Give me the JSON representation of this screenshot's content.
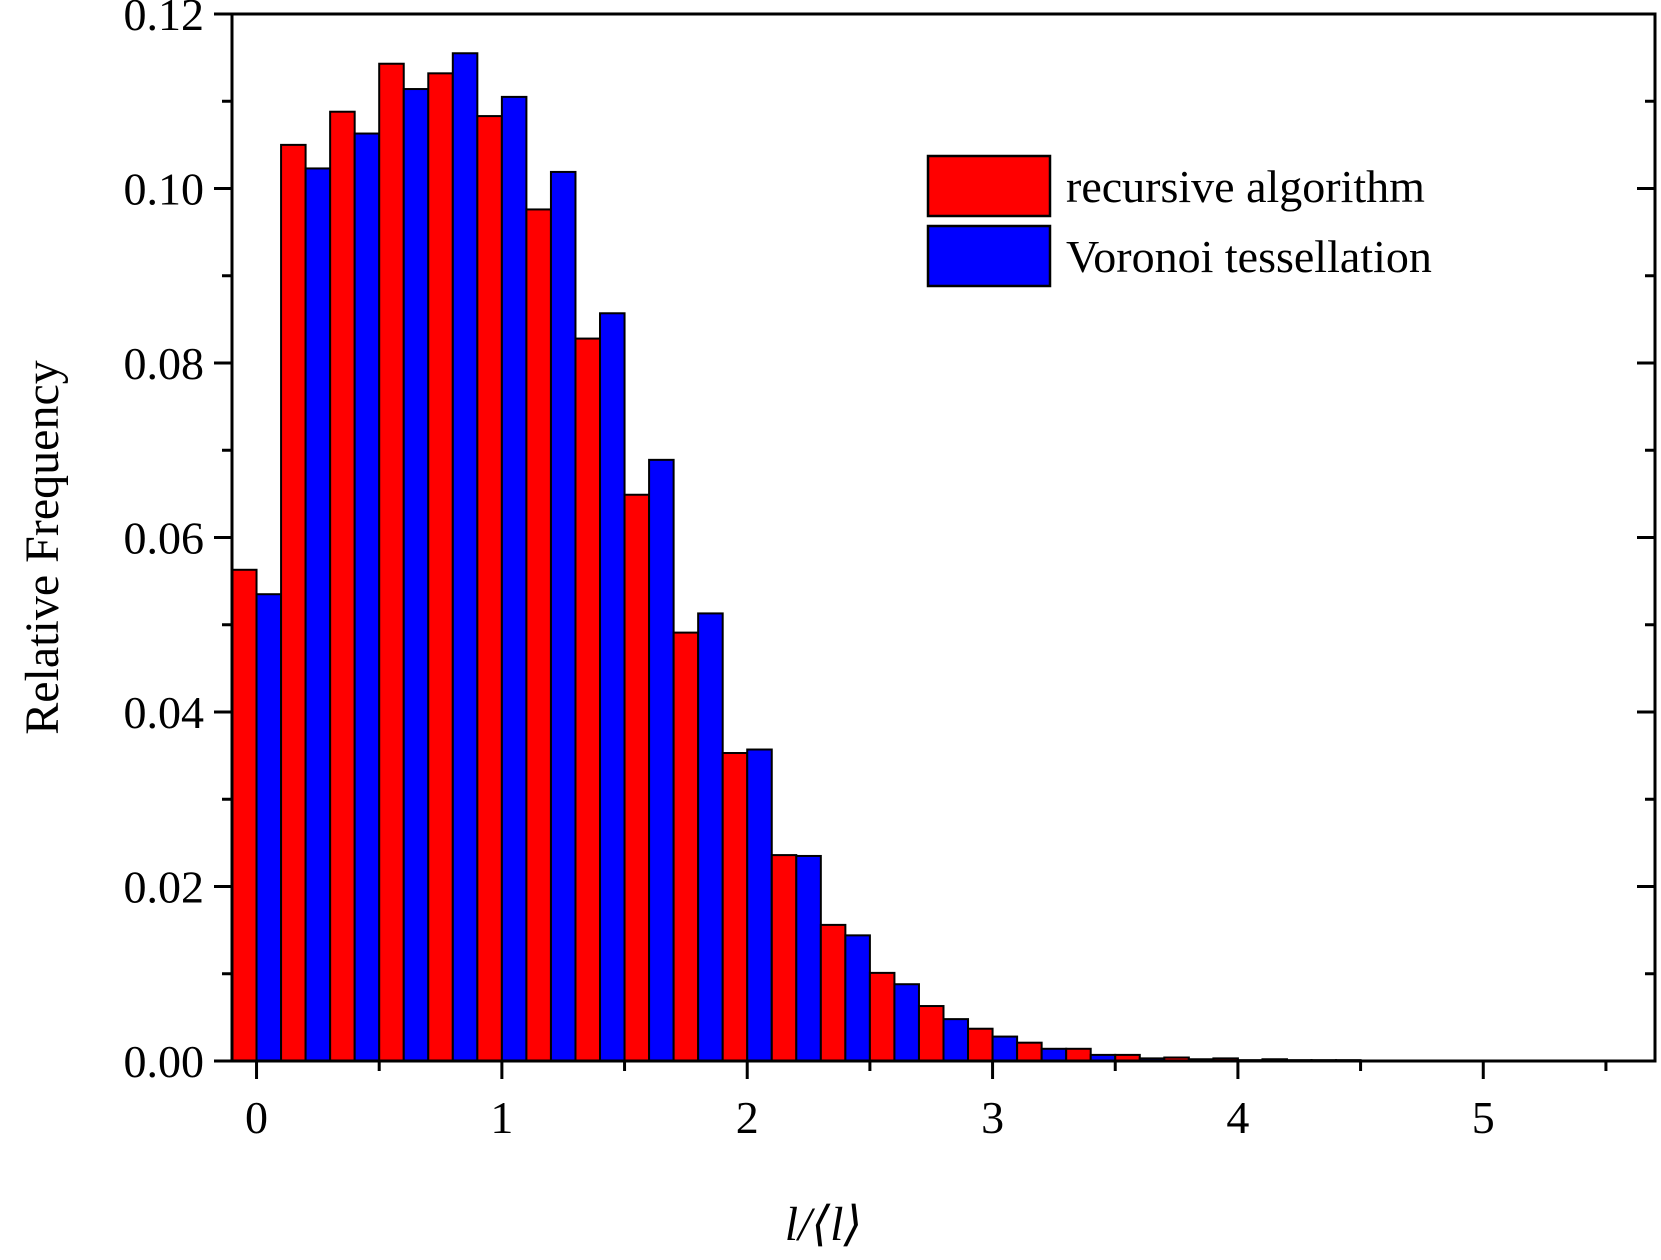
{
  "chart_data": {
    "type": "bar",
    "xlabel": "l/⟨l⟩",
    "ylabel": "Relative Frequency",
    "xlim": [
      -0.1,
      5.7
    ],
    "ylim": [
      0.0,
      0.12
    ],
    "x_ticks": [
      "0",
      "1",
      "2",
      "3",
      "4",
      "5"
    ],
    "x_tick_values": [
      0,
      1,
      2,
      3,
      4,
      5
    ],
    "y_ticks": [
      "0.00",
      "0.02",
      "0.04",
      "0.06",
      "0.08",
      "0.10",
      "0.12"
    ],
    "y_tick_values": [
      0.0,
      0.02,
      0.04,
      0.06,
      0.08,
      0.1,
      0.12
    ],
    "bin_width": 0.2,
    "x": [
      0.0,
      0.2,
      0.4,
      0.6,
      0.8,
      1.0,
      1.2,
      1.4,
      1.6,
      1.8,
      2.0,
      2.2,
      2.4,
      2.6,
      2.8,
      3.0,
      3.2,
      3.4,
      3.6,
      3.8,
      4.0,
      4.2,
      4.4
    ],
    "grid": false,
    "legend_position": "top-right",
    "series": [
      {
        "name": "recursive algorithm",
        "color": "#ff0000",
        "values": [
          0.0563,
          0.105,
          0.1088,
          0.1143,
          0.1132,
          0.1083,
          0.0976,
          0.0828,
          0.0649,
          0.0491,
          0.0353,
          0.0236,
          0.0156,
          0.0101,
          0.0063,
          0.0037,
          0.0021,
          0.0014,
          0.0007,
          0.0004,
          0.0003,
          0.0002,
          0.0001
        ]
      },
      {
        "name": "Voronoi tessellation",
        "color": "#0000ff",
        "values": [
          0.0535,
          0.1023,
          0.1063,
          0.1114,
          0.1155,
          0.1105,
          0.1019,
          0.0857,
          0.0689,
          0.0513,
          0.0357,
          0.0235,
          0.0144,
          0.0088,
          0.0048,
          0.0028,
          0.0014,
          0.0007,
          0.0003,
          0.0002,
          0.0001,
          0.0001,
          0.0001
        ]
      }
    ]
  }
}
